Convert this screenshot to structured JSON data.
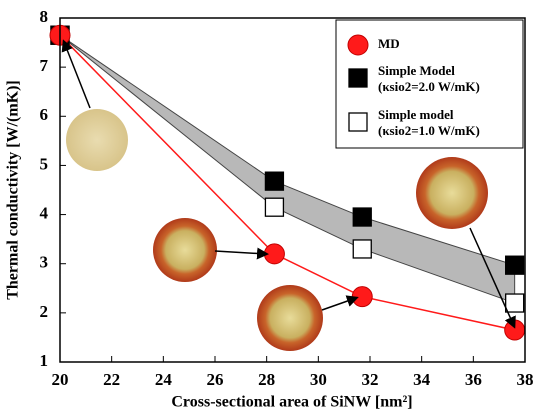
{
  "chart_data": {
    "type": "line",
    "xlabel": "Cross-sectional area of SiNW [nm²]",
    "ylabel": "Thermal conductivity [W/(mK)]",
    "x": [
      20,
      28.3,
      31.7,
      37.6
    ],
    "series": [
      {
        "name": "MD",
        "color": "#ff1a1a",
        "marker": "circle",
        "line": true,
        "values": [
          7.65,
          3.2,
          2.33,
          1.65
        ]
      },
      {
        "name": "Simple Model",
        "note": "(κsio2=2.0 W/mK)",
        "color": "#000000",
        "marker": "square",
        "line": false,
        "values": [
          7.65,
          4.68,
          3.95,
          2.97
        ]
      },
      {
        "name": "Simple model",
        "note": "(κsio2=1.0 W/mK)",
        "color": "#000000",
        "marker": "open-square",
        "line": false,
        "values": [
          7.65,
          4.15,
          3.3,
          2.2
        ]
      }
    ],
    "xlim": [
      20,
      38
    ],
    "xticks": [
      20,
      22,
      24,
      26,
      28,
      30,
      32,
      34,
      36,
      38
    ],
    "ylim": [
      1,
      8
    ],
    "yticks": [
      1,
      2,
      3,
      4,
      5,
      6,
      7,
      8
    ]
  }
}
